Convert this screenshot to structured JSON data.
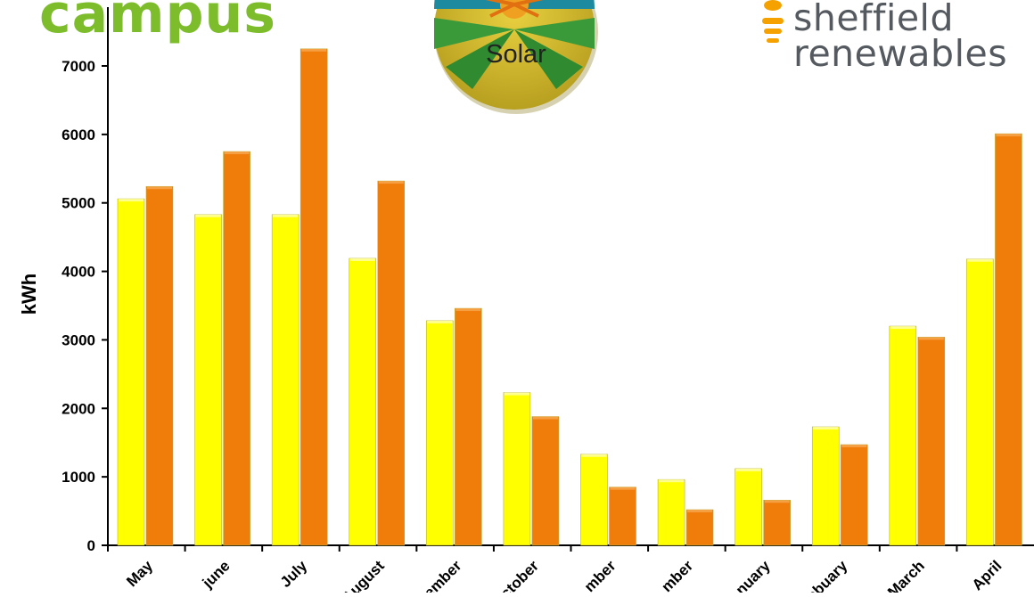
{
  "logos": {
    "campus": {
      "text": "campus",
      "color": "#7dbd2c"
    },
    "solar": {
      "text": "Solar"
    },
    "sheffield": {
      "line1": "sheffield",
      "line2": "renewables",
      "text_color": "#555a60",
      "accent_color": "#f5a200"
    }
  },
  "chart_data": {
    "type": "bar",
    "ylabel": "kWh",
    "ylim": [
      0,
      7000
    ],
    "yticks": [
      0,
      1000,
      2000,
      3000,
      4000,
      5000,
      6000,
      7000
    ],
    "categories": [
      "May",
      "june",
      "July",
      "August",
      "ember",
      "ctober",
      "mber",
      "mber",
      "nuary",
      "ebuary",
      "March",
      "April"
    ],
    "series": [
      {
        "color": "#ffff00",
        "values": [
          5060,
          4830,
          4830,
          4190,
          3280,
          2230,
          1330,
          960,
          1120,
          1730,
          3200,
          4180
        ]
      },
      {
        "color": "#f07c0a",
        "values": [
          5240,
          5750,
          7250,
          5320,
          3460,
          1880,
          850,
          520,
          660,
          1470,
          3040,
          6010
        ]
      }
    ],
    "grid": false,
    "legend": "none"
  }
}
